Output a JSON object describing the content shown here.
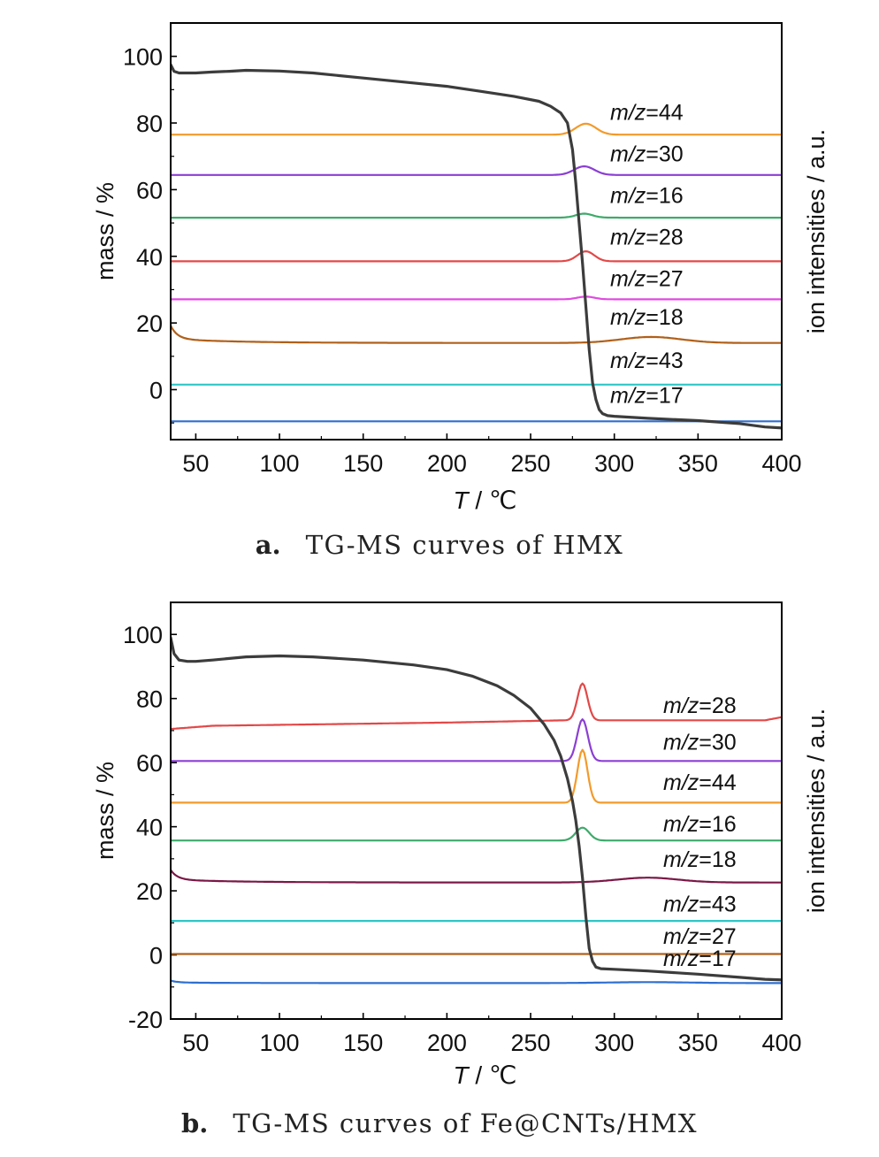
{
  "chart_data": [
    {
      "type": "line",
      "caption_label": "a.",
      "caption_text": "TG-MS curves of HMX",
      "xlabel_italic": "T",
      "xlabel_rest": " / ℃",
      "ylabel": "mass / %",
      "ylabel_right": "ion intensities / a.u.",
      "xlim": [
        35,
        400
      ],
      "ylim": [
        -15,
        110
      ],
      "xticks": [
        50,
        100,
        150,
        200,
        250,
        300,
        350,
        400
      ],
      "yticks": [
        0,
        20,
        40,
        60,
        80,
        100
      ],
      "grid": false,
      "mass_series": {
        "name": "TG",
        "color": "#3c3c3c",
        "x": [
          35,
          37,
          40,
          50,
          60,
          70,
          80,
          100,
          120,
          150,
          180,
          200,
          220,
          240,
          255,
          262,
          268,
          272,
          275,
          277,
          279,
          281,
          283,
          285,
          287,
          289,
          291,
          293,
          296,
          300,
          320,
          350,
          375,
          390,
          400
        ],
        "y": [
          97.5,
          95.5,
          95,
          95,
          95.3,
          95.5,
          95.8,
          95.6,
          95,
          93.5,
          92,
          91,
          89.5,
          88,
          86.5,
          85,
          83,
          80,
          72,
          62,
          50,
          38,
          25,
          12,
          2,
          -3,
          -6,
          -7.2,
          -7.8,
          -8,
          -8.6,
          -9.3,
          -10.2,
          -11.2,
          -11.5
        ]
      },
      "ms_series": [
        {
          "label_italic": "m/z",
          "label_rest": "=44",
          "color": "#f39a2b",
          "baseline": 76.5,
          "peaks": [
            {
              "x": 283,
              "h": 3.3,
              "w": 6
            }
          ],
          "label_x": 690,
          "label_y": 81
        },
        {
          "label_italic": "m/z",
          "label_rest": "=30",
          "color": "#8b3fd3",
          "baseline": 64.4,
          "peaks": [
            {
              "x": 282,
              "h": 2.6,
              "w": 6
            }
          ],
          "label_x": 690,
          "label_y": 68.5
        },
        {
          "label_italic": "m/z",
          "label_rest": "=16",
          "color": "#3faa6b",
          "baseline": 51.6,
          "peaks": [
            {
              "x": 282,
              "h": 1.2,
              "w": 5
            }
          ],
          "label_x": 690,
          "label_y": 56
        },
        {
          "label_italic": "m/z",
          "label_rest": "=28",
          "color": "#e24848",
          "baseline": 38.5,
          "peaks": [
            {
              "x": 283,
              "h": 3.0,
              "w": 5
            }
          ],
          "label_x": 690,
          "label_y": 43.5
        },
        {
          "label_italic": "m/z",
          "label_rest": "=27",
          "color": "#e04be0",
          "baseline": 27.1,
          "peaks": [
            {
              "x": 283,
              "h": 0.8,
              "w": 5
            }
          ],
          "label_x": 690,
          "label_y": 31
        },
        {
          "label_italic": "m/z",
          "label_rest": "=18",
          "color": "#b0601a",
          "baseline": 14.0,
          "start_bump": 4,
          "peaks": [
            {
              "x": 322,
              "h": 1.8,
              "w": 18
            }
          ],
          "label_x": 690,
          "label_y": 19.5
        },
        {
          "label_italic": "m/z",
          "label_rest": "=43",
          "color": "#2fc6c8",
          "baseline": 1.5,
          "peaks": [],
          "label_x": 690,
          "label_y": 6.5
        },
        {
          "label_italic": "m/z",
          "label_rest": "=17",
          "color": "#2f6fcf",
          "baseline": -9.5,
          "peaks": [],
          "label_x": 690,
          "label_y": -4
        }
      ]
    },
    {
      "type": "line",
      "caption_label": "b.",
      "caption_text": "TG-MS curves of Fe@CNTs/HMX",
      "xlabel_italic": "T",
      "xlabel_rest": " / ℃",
      "ylabel": "mass / %",
      "ylabel_right": "ion intensities / a.u.",
      "xlim": [
        35,
        400
      ],
      "ylim": [
        -20,
        110
      ],
      "xticks": [
        50,
        100,
        150,
        200,
        250,
        300,
        350,
        400
      ],
      "yticks": [
        -20,
        0,
        20,
        40,
        60,
        80,
        100
      ],
      "grid": false,
      "mass_series": {
        "name": "TG",
        "color": "#3c3c3c",
        "x": [
          35,
          37,
          40,
          45,
          50,
          60,
          80,
          100,
          120,
          150,
          180,
          200,
          215,
          230,
          240,
          250,
          258,
          264,
          268,
          272,
          275,
          277,
          279,
          281,
          283,
          285,
          287,
          289,
          292,
          300,
          320,
          350,
          375,
          390,
          400
        ],
        "y": [
          99,
          94,
          92,
          91.6,
          91.6,
          92,
          93,
          93.3,
          93,
          92,
          90.5,
          89,
          87,
          84,
          81,
          77,
          72,
          67,
          62,
          55,
          48,
          42,
          34,
          24,
          12,
          2,
          -2,
          -3.8,
          -4.3,
          -4.5,
          -5,
          -6,
          -7,
          -7.6,
          -7.8
        ]
      },
      "ms_series": [
        {
          "label_italic": "m/z",
          "label_rest": "=28",
          "color": "#e24848",
          "baseline": 73.2,
          "lead": [
            {
              "x": 35,
              "y": 70.5
            },
            {
              "x": 60,
              "y": 71.5
            },
            {
              "x": 200,
              "y": 72.5
            },
            {
              "x": 270,
              "y": 73.2
            }
          ],
          "peaks": [
            {
              "x": 281,
              "h": 11.5,
              "w": 3
            }
          ],
          "tail_up": 1,
          "label_x": 750,
          "label_y": 75.5
        },
        {
          "label_italic": "m/z",
          "label_rest": "=30",
          "color": "#8b3fd3",
          "baseline": 60.5,
          "peaks": [
            {
              "x": 281,
              "h": 13,
              "w": 3.2
            }
          ],
          "label_x": 750,
          "label_y": 64
        },
        {
          "label_italic": "m/z",
          "label_rest": "=44",
          "color": "#f39a2b",
          "baseline": 47.5,
          "peaks": [
            {
              "x": 281,
              "h": 16.5,
              "w": 3
            }
          ],
          "label_x": 750,
          "label_y": 51.5
        },
        {
          "label_italic": "m/z",
          "label_rest": "=16",
          "color": "#3faa6b",
          "baseline": 35.7,
          "peaks": [
            {
              "x": 281,
              "h": 4,
              "w": 4
            }
          ],
          "label_x": 750,
          "label_y": 38.5
        },
        {
          "label_italic": "m/z",
          "label_rest": "=18",
          "color": "#7a1846",
          "baseline": 22.6,
          "start_bump": 3,
          "peaks": [
            {
              "x": 320,
              "h": 1.5,
              "w": 18
            }
          ],
          "label_x": 750,
          "label_y": 27.5
        },
        {
          "label_italic": "m/z",
          "label_rest": "=43",
          "color": "#2fc6c8",
          "baseline": 10.6,
          "peaks": [],
          "label_x": 750,
          "label_y": 13.5
        },
        {
          "label_italic": "m/z",
          "label_rest": "=27",
          "color": "#b0601a",
          "baseline": 0.3,
          "peaks": [],
          "label_x": 750,
          "label_y": 3.5
        },
        {
          "label_italic": "m/z",
          "label_rest": "=17",
          "color": "#2f6fcf",
          "baseline": -8.8,
          "start_bump": 0.6,
          "peaks": [
            {
              "x": 320,
              "h": 0.3,
              "w": 25
            }
          ],
          "label_x": 750,
          "label_y": -3.5
        }
      ]
    }
  ]
}
